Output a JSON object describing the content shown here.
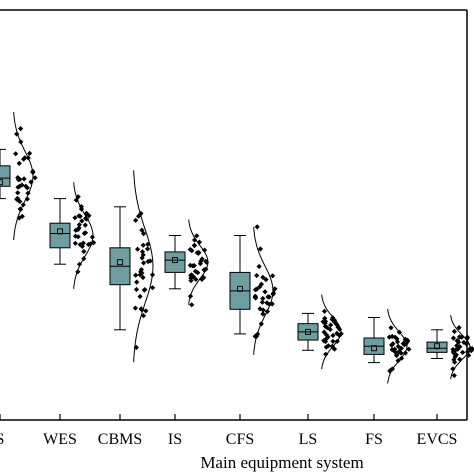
{
  "chart_data": {
    "type": "box",
    "xlabel": "Main equipment system",
    "ylabel": "",
    "categories": [
      "S",
      "WES",
      "CBMS",
      "IS",
      "CFS",
      "LS",
      "FS",
      "EVCS"
    ],
    "ylim": [
      0,
      1
    ],
    "grid": false,
    "legend": "none",
    "boxes": [
      {
        "category": "S",
        "whisker_low": 0.54,
        "q1": 0.57,
        "median": 0.59,
        "mean": 0.58,
        "q3": 0.62,
        "whisker_high": 0.66
      },
      {
        "category": "WES",
        "whisker_low": 0.38,
        "q1": 0.42,
        "median": 0.455,
        "mean": 0.46,
        "q3": 0.48,
        "whisker_high": 0.54
      },
      {
        "category": "CBMS",
        "whisker_low": 0.22,
        "q1": 0.33,
        "median": 0.375,
        "mean": 0.385,
        "q3": 0.42,
        "whisker_high": 0.52
      },
      {
        "category": "IS",
        "whisker_low": 0.32,
        "q1": 0.36,
        "median": 0.39,
        "mean": 0.39,
        "q3": 0.41,
        "whisker_high": 0.45
      },
      {
        "category": "CFS",
        "whisker_low": 0.21,
        "q1": 0.27,
        "median": 0.315,
        "mean": 0.32,
        "q3": 0.36,
        "whisker_high": 0.45
      },
      {
        "category": "LS",
        "whisker_low": 0.17,
        "q1": 0.195,
        "median": 0.215,
        "mean": 0.215,
        "q3": 0.235,
        "whisker_high": 0.26
      },
      {
        "category": "FS",
        "whisker_low": 0.14,
        "q1": 0.16,
        "median": 0.18,
        "mean": 0.175,
        "q3": 0.2,
        "whisker_high": 0.25
      },
      {
        "category": "EVCS",
        "whisker_low": 0.15,
        "q1": 0.165,
        "median": 0.175,
        "mean": 0.18,
        "q3": 0.19,
        "whisker_high": 0.22
      }
    ],
    "distribution_spread": [
      0.06,
      0.05,
      0.09,
      0.04,
      0.06,
      0.035,
      0.035,
      0.03
    ],
    "colors": {
      "box_fill": "#6e9ea0",
      "line": "#000000",
      "points": "#000000"
    }
  }
}
